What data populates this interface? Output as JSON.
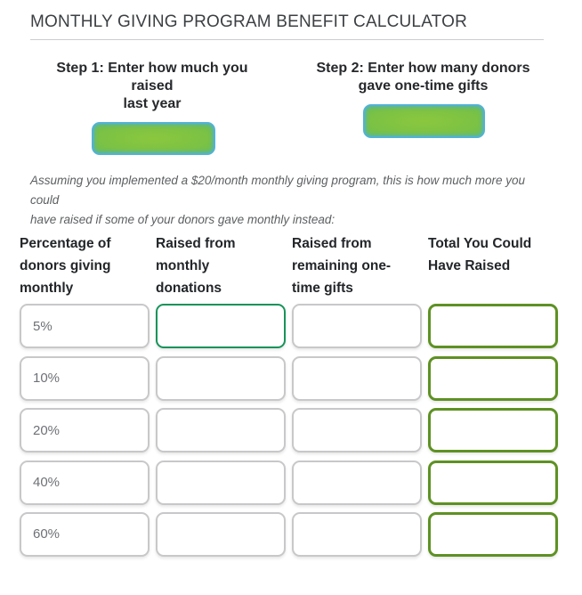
{
  "page": {
    "title": "MONTHLY GIVING PROGRAM BENEFIT CALCULATOR"
  },
  "steps": [
    {
      "label": "Step 1: Enter how much you\nraised\nlast year",
      "value": ""
    },
    {
      "label": "Step 2: Enter how many donors\ngave one-time gifts",
      "value": ""
    }
  ],
  "note": "Assuming you implemented a $20/month monthly giving program, this is how much more you could\nhave raised if some of your donors gave monthly instead:",
  "table": {
    "headers": [
      "Percentage of\ndonors giving\nmonthly",
      "Raised from\nmonthly\ndonations",
      "Raised from\nremaining one-\ntime gifts",
      "Total You Could\nHave Raised"
    ],
    "rows": [
      {
        "percentage": "5%",
        "monthly": "",
        "remaining": "",
        "total": ""
      },
      {
        "percentage": "10%",
        "monthly": "",
        "remaining": "",
        "total": ""
      },
      {
        "percentage": "20%",
        "monthly": "",
        "remaining": "",
        "total": ""
      },
      {
        "percentage": "40%",
        "monthly": "",
        "remaining": "",
        "total": ""
      },
      {
        "percentage": "60%",
        "monthly": "",
        "remaining": "",
        "total": ""
      }
    ]
  },
  "colors": {
    "input_green_fill": "#7cc242",
    "input_blue_border": "#52b2d6",
    "focused_field_border": "#17945a",
    "total_field_border": "#5e9123",
    "field_gray_border": "#c8c8ca",
    "title_text": "#3c4043",
    "heading_text": "#26282b",
    "note_text": "#5c5f61",
    "value_text": "#6e7176"
  }
}
